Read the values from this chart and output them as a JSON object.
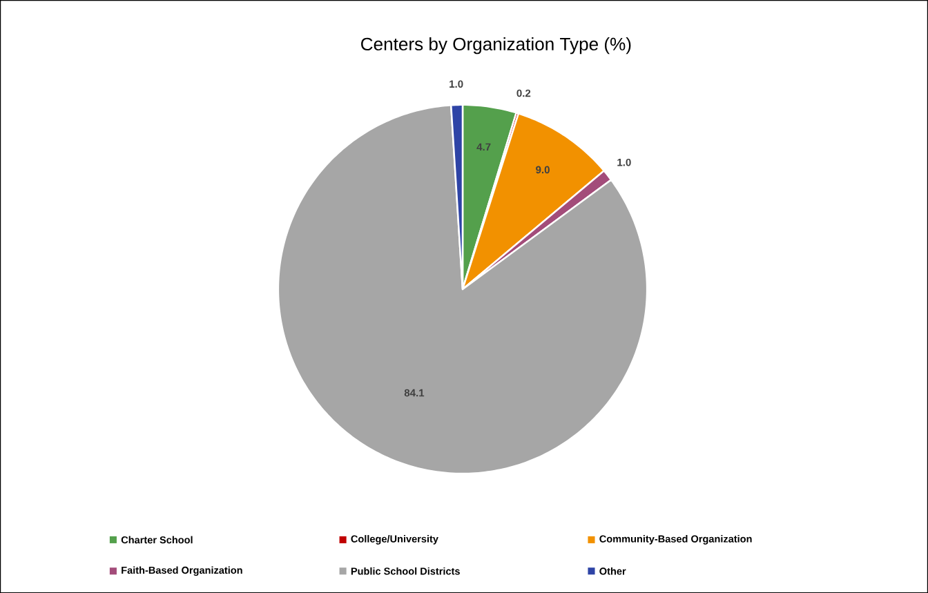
{
  "chart_data": {
    "type": "pie",
    "title": "Centers by Organization Type (%)",
    "categories": [
      "Charter School",
      "College/University",
      "Community-Based Organization",
      "Faith-Based Organization",
      "Public School Districts",
      "Other"
    ],
    "values": [
      4.7,
      0.2,
      9.0,
      1.0,
      84.1,
      1.0
    ],
    "colors": [
      "#54a04c",
      "#c00000",
      "#f29100",
      "#a34c7a",
      "#a6a6a6",
      "#2e44a6"
    ],
    "value_labels": [
      "4.7",
      "0.2",
      "9.0",
      "1.0",
      "84.1",
      "1.0"
    ],
    "legend": "bottom"
  }
}
